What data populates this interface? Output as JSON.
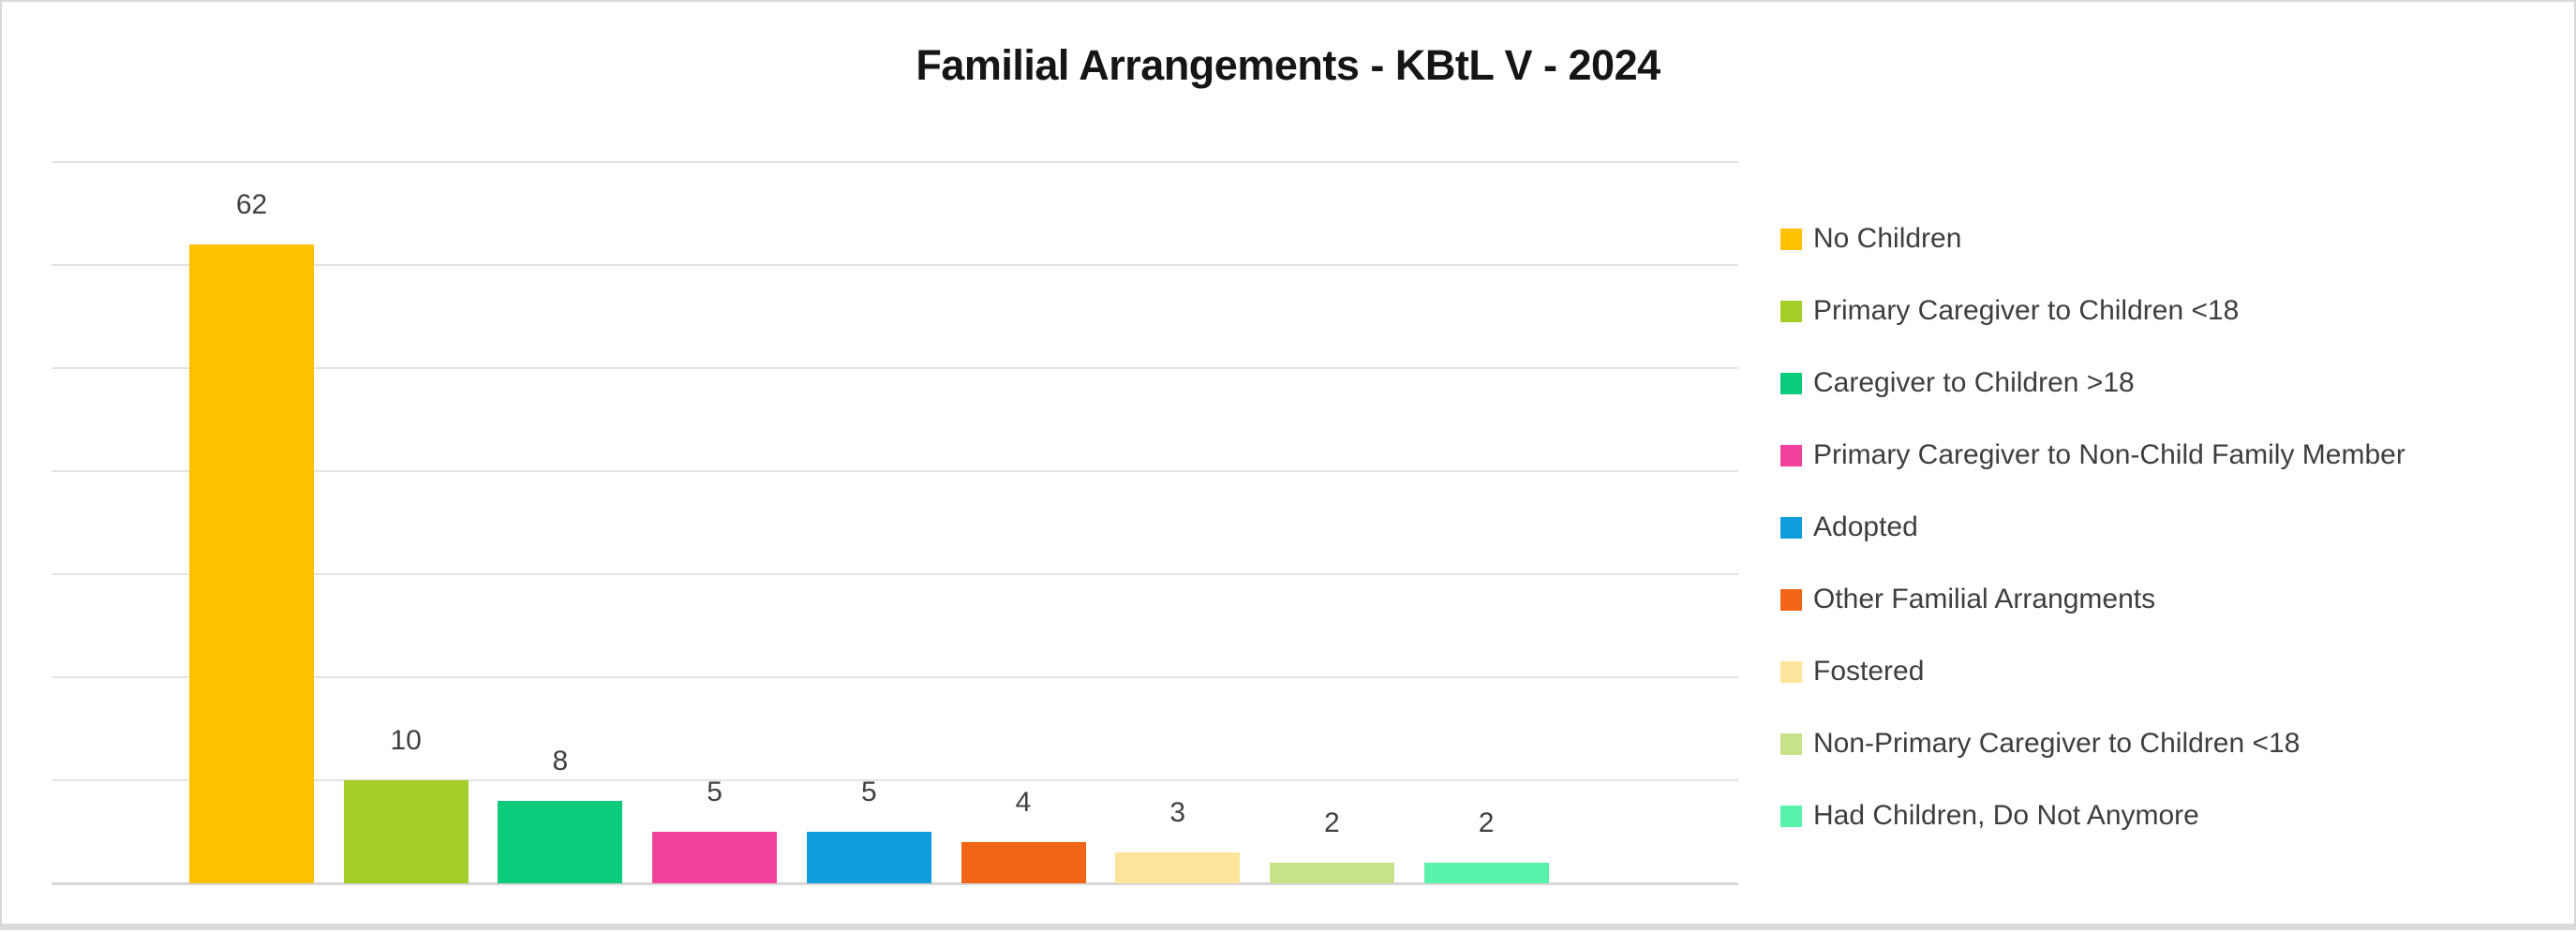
{
  "chart_data": {
    "type": "bar",
    "title": "Familial Arrangements - KBtL V - 2024",
    "categories": [
      "No Children",
      "Primary Caregiver to Children <18",
      "Caregiver to Children >18",
      "Primary Caregiver to Non-Child Family Member",
      "Adopted",
      "Other Familial Arrangments",
      "Fostered",
      "Non-Primary Caregiver to Children <18",
      "Had Children, Do Not Anymore"
    ],
    "values": [
      62,
      10,
      8,
      5,
      5,
      4,
      3,
      2,
      2
    ],
    "colors": [
      "#FFC000",
      "#A4CE27",
      "#0CCB7D",
      "#F2419B",
      "#0F9CDE",
      "#F26517",
      "#FEE49A",
      "#C8E287",
      "#58F2AD"
    ],
    "data_labels": [
      "62",
      "10",
      "8",
      "5",
      "5",
      "4",
      "3",
      "2",
      "2"
    ],
    "xlabel": "",
    "ylabel": "",
    "ylim": [
      0,
      70
    ],
    "gridline_step": 10,
    "grid": true,
    "legend_position": "right",
    "x_tick_labels_shown": false,
    "y_tick_labels_shown": false
  },
  "style": {
    "grid_color": "#E3E3E3",
    "axis_line_color": "#D6D6D6",
    "data_label_color": "#404040",
    "legend_text_color": "#3E3E3E",
    "title_color": "#151515",
    "background_color": "#FFFFFF",
    "frame_border_color": "#D9D9D9"
  }
}
